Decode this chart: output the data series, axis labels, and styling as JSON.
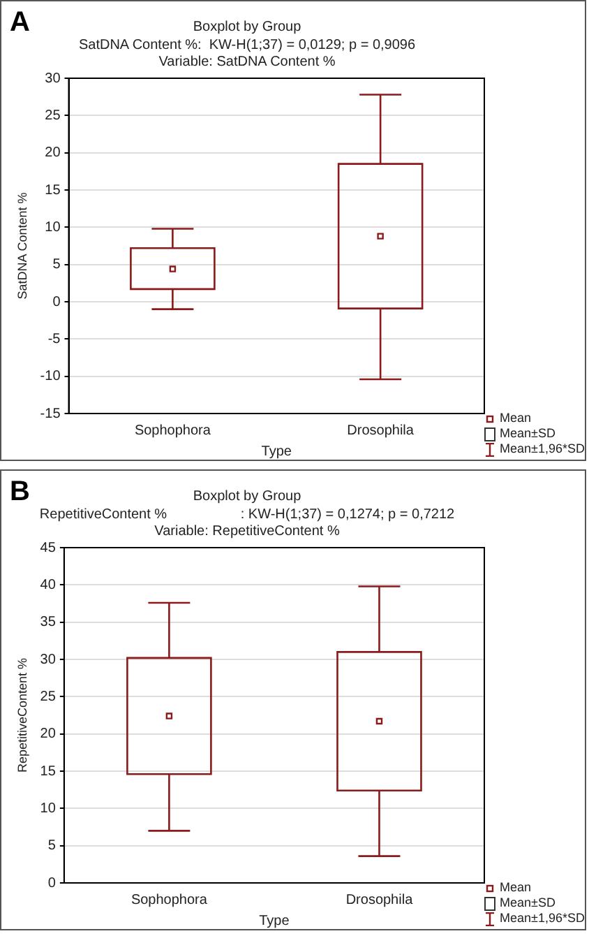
{
  "chart_data": [
    {
      "type": "box",
      "title": "Boxplot by Group",
      "subtitle": "SatDNA Content %:  KW-H(1;37) = 0,0129; p = 0,9096",
      "xlabel": "Type",
      "ylabel": "SatDNA Content %",
      "annotations": [
        "A",
        "Variable: SatDNA Content %",
        "Mean",
        "Mean±SD",
        "Mean±1,96*SD"
      ],
      "categories": [
        "Sophophora",
        "Drosophila"
      ],
      "series": [
        {
          "color": "#8b1a1a",
          "boxes": [
            {
              "low": -1,
              "q1": 1.7,
              "mean": 4.4,
              "q3": 7.2,
              "high": 9.8
            },
            {
              "low": -10.4,
              "q1": -0.9,
              "mean": 8.8,
              "q3": 18.5,
              "high": 27.8
            }
          ]
        }
      ],
      "ylim": [
        -15,
        30
      ],
      "yticks": [
        -15,
        -10,
        -5,
        0,
        5,
        10,
        15,
        20,
        25,
        30
      ],
      "grid": "y",
      "marker": "square"
    },
    {
      "type": "box",
      "title": "Boxplot by Group",
      "subtitle": "RepetitiveContent %                   : KW-H(1;37) = 0,1274; p = 0,7212",
      "xlabel": "Type",
      "ylabel": "RepetitiveContent %",
      "annotations": [
        "B",
        "Variable: RepetitiveContent %",
        "Mean",
        "Mean±SD",
        "Mean±1,96*SD"
      ],
      "categories": [
        "Sophophora",
        "Drosophila"
      ],
      "series": [
        {
          "color": "#8b1a1a",
          "boxes": [
            {
              "low": 7,
              "q1": 14.6,
              "mean": 22.4,
              "q3": 30.2,
              "high": 37.6
            },
            {
              "low": 3.6,
              "q1": 12.4,
              "mean": 21.7,
              "q3": 31,
              "high": 39.8
            }
          ]
        }
      ],
      "ylim": [
        0,
        45
      ],
      "yticks": [
        0,
        5,
        10,
        15,
        20,
        25,
        30,
        35,
        40,
        45
      ],
      "grid": "y",
      "marker": "square"
    }
  ]
}
